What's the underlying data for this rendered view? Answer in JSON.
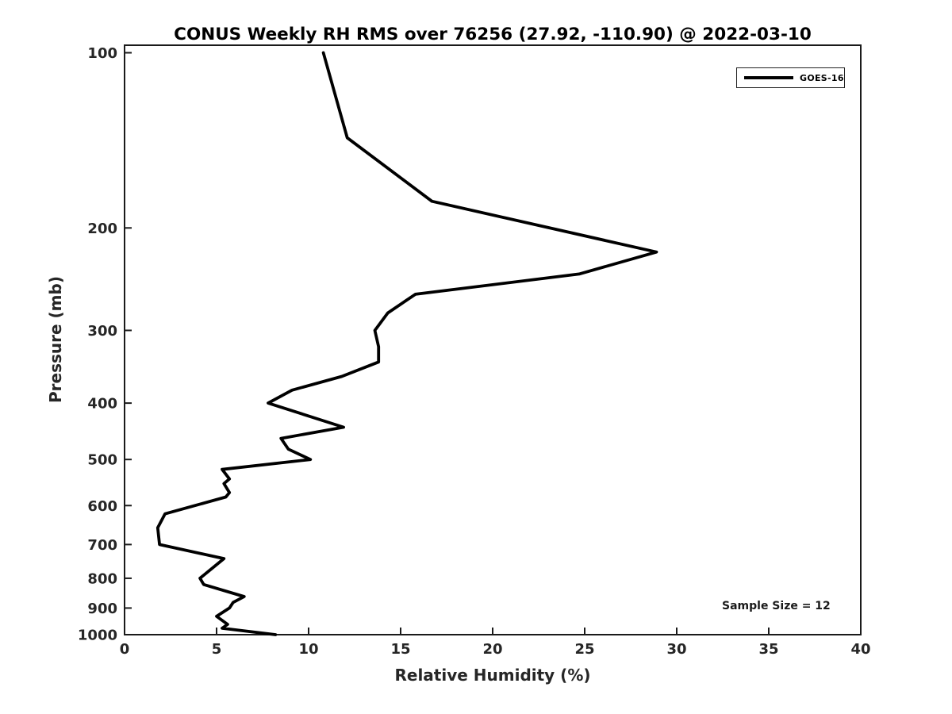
{
  "chart_data": {
    "type": "line",
    "title": "CONUS Weekly RH RMS over 76256 (27.92, -110.90) @ 2022-03-10",
    "xlabel": "Relative Humidity (%)",
    "ylabel": "Pressure (mb)",
    "annotation": "Sample Size = 12",
    "sample_size": 12,
    "xlim": [
      0,
      40
    ],
    "ylim": [
      1000,
      97
    ],
    "yscale": "log",
    "xticks": [
      0,
      5,
      10,
      15,
      20,
      25,
      30,
      35,
      40
    ],
    "yticks": [
      100,
      200,
      300,
      400,
      500,
      600,
      700,
      800,
      900,
      1000
    ],
    "grid": false,
    "legend_position": "upper right",
    "series": [
      {
        "name": "GOES-16",
        "color": "#000000",
        "linewidth": 3.8,
        "pressure": [
          100,
          140,
          180,
          220,
          240,
          260,
          280,
          300,
          320,
          340,
          360,
          380,
          400,
          440,
          460,
          480,
          500,
          520,
          540,
          550,
          570,
          580,
          620,
          655,
          700,
          740,
          800,
          820,
          860,
          880,
          900,
          930,
          960,
          975,
          1000
        ],
        "rh": [
          10.8,
          12.1,
          16.7,
          28.9,
          24.7,
          15.8,
          14.3,
          13.6,
          13.8,
          13.8,
          11.8,
          9.1,
          7.8,
          11.9,
          8.5,
          8.9,
          10.1,
          5.3,
          5.7,
          5.4,
          5.7,
          5.5,
          2.2,
          1.8,
          1.9,
          5.4,
          4.1,
          4.3,
          6.5,
          5.9,
          5.7,
          5.0,
          5.6,
          5.3,
          8.2
        ]
      }
    ]
  }
}
